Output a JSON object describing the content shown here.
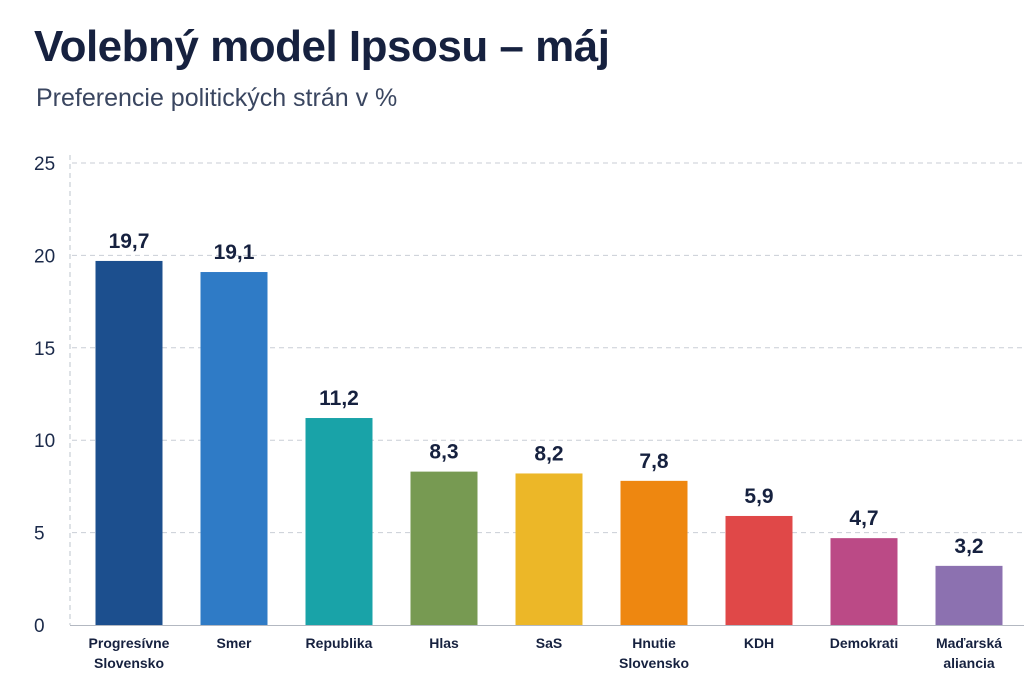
{
  "header": {
    "title": "Volebný model Ipsosu – máj",
    "subtitle": "Preferencie politických strán v %"
  },
  "chart_data": {
    "type": "bar",
    "title": "Volebný model Ipsosu – máj",
    "subtitle": "Preferencie politických strán v %",
    "categories": [
      "Progresívne Slovensko",
      "Smer",
      "Republika",
      "Hlas",
      "SaS",
      "Hnutie Slovensko",
      "KDH",
      "Demokrati",
      "Maďarská aliancia"
    ],
    "category_lines": [
      [
        "Progresívne",
        "Slovensko"
      ],
      [
        "Smer"
      ],
      [
        "Republika"
      ],
      [
        "Hlas"
      ],
      [
        "SaS"
      ],
      [
        "Hnutie",
        "Slovensko"
      ],
      [
        "KDH"
      ],
      [
        "Demokrati"
      ],
      [
        "Maďarská",
        "aliancia"
      ]
    ],
    "values": [
      19.7,
      19.1,
      11.2,
      8.3,
      8.2,
      7.8,
      5.9,
      4.7,
      3.2
    ],
    "value_labels": [
      "19,7",
      "19,1",
      "11,2",
      "8,3",
      "8,2",
      "7,8",
      "5,9",
      "4,7",
      "3,2"
    ],
    "colors": [
      "#1c4f8e",
      "#2f7bc6",
      "#19a3a8",
      "#779a52",
      "#ecb728",
      "#ee8710",
      "#e04848",
      "#bb4a86",
      "#8c71b0"
    ],
    "yticks": [
      0,
      5,
      10,
      15,
      20,
      25
    ],
    "ylim": [
      0,
      25
    ],
    "xlabel": "",
    "ylabel": "",
    "grid": true,
    "legend": "none"
  }
}
